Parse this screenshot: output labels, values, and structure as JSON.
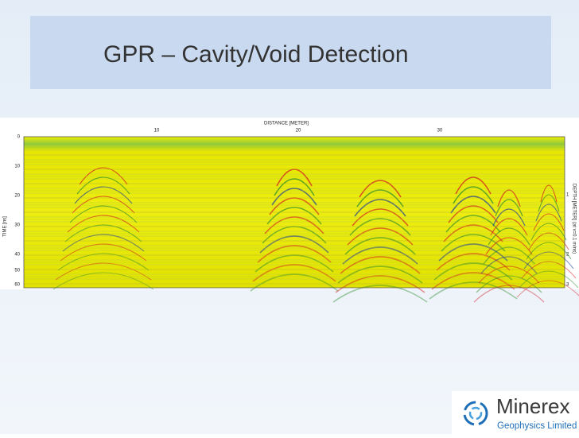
{
  "title": "GPR – Cavity/Void Detection",
  "radargram": {
    "x_axis": {
      "label": "DISTANCE [METER]",
      "ticks": [
        10,
        20,
        30
      ]
    },
    "left_axis": {
      "label": "TIME [ns]",
      "ticks": [
        0,
        10,
        20,
        30,
        40,
        50,
        60
      ]
    },
    "right_axis": {
      "label": "DEPTH [METER] (at v=0.1 m/ns)",
      "ticks": [
        1,
        2,
        3
      ]
    }
  },
  "logo": {
    "name": "Minerex",
    "subtitle": "Geophysics Limited"
  }
}
